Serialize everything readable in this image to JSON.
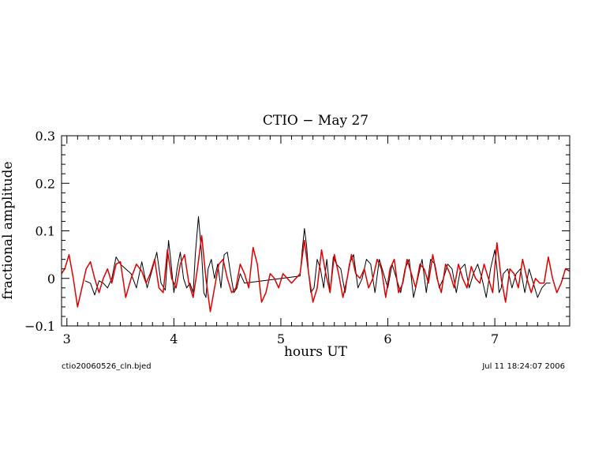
{
  "chart_data": {
    "type": "line",
    "title": "CTIO − May 27",
    "xlabel": "hours UT",
    "ylabel": "fractional amplitude",
    "xlim": [
      2.95,
      7.7
    ],
    "ylim": [
      -0.1,
      0.3
    ],
    "x_ticks": [
      3,
      4,
      5,
      6,
      7
    ],
    "x_tick_labels": [
      "3",
      "4",
      "5",
      "6",
      "7"
    ],
    "y_ticks": [
      -0.1,
      0,
      0.1,
      0.2,
      0.3
    ],
    "y_tick_labels": [
      "−0.1",
      "0",
      "0.1",
      "0.2",
      "0.3"
    ],
    "grid": false,
    "series": [
      {
        "color": "#000000",
        "x": [
          3.17,
          3.22,
          3.26,
          3.3,
          3.34,
          3.38,
          3.42,
          3.46,
          3.5,
          3.55,
          3.6,
          3.65,
          3.7,
          3.75,
          3.8,
          3.84,
          3.88,
          3.92,
          3.95,
          3.97,
          4.0,
          4.03,
          4.06,
          4.09,
          4.12,
          4.15,
          4.18,
          4.2,
          4.23,
          4.26,
          4.28,
          4.3,
          4.32,
          4.35,
          4.38,
          4.41,
          4.44,
          4.47,
          4.5,
          4.53,
          4.56,
          4.59,
          4.62,
          4.66,
          5.18,
          5.2,
          5.22,
          5.24,
          5.26,
          5.28,
          5.31,
          5.34,
          5.37,
          5.4,
          5.43,
          5.46,
          5.49,
          5.52,
          5.56,
          5.6,
          5.64,
          5.68,
          5.72,
          5.76,
          5.8,
          5.84,
          5.88,
          5.92,
          5.96,
          6.0,
          6.04,
          6.08,
          6.12,
          6.16,
          6.2,
          6.24,
          6.28,
          6.32,
          6.36,
          6.4,
          6.44,
          6.48,
          6.52,
          6.56,
          6.6,
          6.64,
          6.68,
          6.72,
          6.76,
          6.8,
          6.84,
          6.88,
          6.92,
          6.96,
          7.0,
          7.02,
          7.04,
          7.06,
          7.08,
          7.12,
          7.16,
          7.2,
          7.24,
          7.28,
          7.32,
          7.36,
          7.4,
          7.44,
          7.48,
          7.52
        ],
        "y": [
          -0.005,
          -0.01,
          -0.035,
          -0.005,
          -0.01,
          -0.02,
          0.0,
          0.045,
          0.03,
          0.02,
          0.01,
          -0.02,
          0.035,
          -0.02,
          0.02,
          0.055,
          -0.01,
          -0.025,
          0.08,
          0.04,
          -0.03,
          0.02,
          0.055,
          0.0,
          -0.02,
          -0.01,
          -0.03,
          0.05,
          0.13,
          0.05,
          -0.03,
          -0.04,
          0.02,
          0.04,
          0.0,
          0.03,
          -0.02,
          0.05,
          0.055,
          0.01,
          -0.03,
          -0.02,
          0.01,
          -0.01,
          0.005,
          0.06,
          0.105,
          0.07,
          0.01,
          -0.03,
          -0.02,
          0.04,
          0.02,
          -0.02,
          0.04,
          -0.03,
          0.045,
          0.03,
          0.02,
          -0.03,
          0.03,
          0.05,
          -0.02,
          0.0,
          0.04,
          0.03,
          -0.03,
          0.04,
          0.01,
          -0.02,
          0.03,
          0.0,
          -0.03,
          0.02,
          0.04,
          -0.04,
          0.0,
          0.04,
          -0.03,
          0.04,
          0.03,
          -0.02,
          0.0,
          0.03,
          0.02,
          -0.03,
          0.02,
          0.03,
          -0.02,
          0.01,
          0.03,
          0.0,
          -0.04,
          0.02,
          0.06,
          0.02,
          -0.03,
          -0.02,
          0.01,
          0.02,
          -0.02,
          0.01,
          0.02,
          -0.03,
          0.02,
          -0.01,
          -0.04,
          -0.02,
          -0.01,
          -0.01
        ]
      },
      {
        "color": "#e00000",
        "x": [
          2.95,
          2.98,
          3.02,
          3.06,
          3.1,
          3.14,
          3.18,
          3.22,
          3.26,
          3.3,
          3.34,
          3.38,
          3.42,
          3.46,
          3.5,
          3.55,
          3.6,
          3.65,
          3.7,
          3.74,
          3.78,
          3.82,
          3.86,
          3.9,
          3.94,
          3.98,
          4.02,
          4.06,
          4.1,
          4.14,
          4.18,
          4.22,
          4.26,
          4.3,
          4.34,
          4.38,
          4.42,
          4.46,
          4.5,
          4.54,
          4.58,
          4.62,
          4.66,
          4.7,
          4.74,
          4.78,
          4.82,
          4.86,
          4.9,
          4.94,
          4.98,
          5.02,
          5.06,
          5.1,
          5.14,
          5.18,
          5.22,
          5.26,
          5.3,
          5.34,
          5.38,
          5.42,
          5.46,
          5.5,
          5.54,
          5.58,
          5.62,
          5.66,
          5.7,
          5.74,
          5.78,
          5.82,
          5.86,
          5.9,
          5.94,
          5.98,
          6.02,
          6.06,
          6.1,
          6.14,
          6.18,
          6.22,
          6.26,
          6.3,
          6.34,
          6.38,
          6.42,
          6.46,
          6.5,
          6.54,
          6.58,
          6.62,
          6.66,
          6.7,
          6.74,
          6.78,
          6.82,
          6.86,
          6.9,
          6.94,
          6.98,
          7.02,
          7.06,
          7.1,
          7.14,
          7.18,
          7.22,
          7.26,
          7.3,
          7.34,
          7.38,
          7.42,
          7.46,
          7.5,
          7.54,
          7.58,
          7.62,
          7.66,
          7.7
        ],
        "y": [
          0.01,
          0.02,
          0.05,
          0.0,
          -0.06,
          -0.02,
          0.02,
          0.035,
          0.0,
          -0.03,
          0.0,
          0.02,
          -0.01,
          0.03,
          0.035,
          -0.04,
          0.0,
          0.03,
          0.015,
          -0.01,
          0.01,
          0.04,
          -0.02,
          -0.03,
          0.06,
          0.0,
          -0.02,
          0.03,
          0.05,
          -0.01,
          -0.04,
          0.02,
          0.09,
          0.0,
          -0.07,
          -0.02,
          0.03,
          0.04,
          0.0,
          -0.03,
          -0.02,
          0.03,
          0.01,
          -0.02,
          0.065,
          0.03,
          -0.05,
          -0.03,
          0.01,
          0.0,
          -0.02,
          0.01,
          0.0,
          -0.01,
          0.0,
          0.01,
          0.08,
          0.01,
          -0.05,
          -0.02,
          0.06,
          0.01,
          -0.03,
          0.05,
          0.01,
          -0.04,
          0.0,
          0.05,
          0.01,
          0.0,
          0.02,
          -0.02,
          0.0,
          0.04,
          0.02,
          -0.04,
          0.02,
          0.04,
          -0.03,
          -0.01,
          0.04,
          0.01,
          -0.02,
          0.03,
          0.02,
          -0.01,
          0.05,
          0.0,
          -0.03,
          0.03,
          0.01,
          -0.02,
          0.03,
          0.0,
          -0.02,
          0.025,
          0.0,
          -0.01,
          0.03,
          0.0,
          -0.03,
          0.075,
          0.0,
          -0.05,
          0.02,
          0.01,
          -0.02,
          0.04,
          0.0,
          -0.03,
          0.0,
          -0.01,
          -0.01,
          0.045,
          0.0,
          -0.03,
          -0.01,
          0.02,
          0.015
        ]
      }
    ]
  },
  "footer": {
    "left": "ctio20060526_cln.bjed",
    "right": "Jul 11 18:24:07 2006"
  }
}
